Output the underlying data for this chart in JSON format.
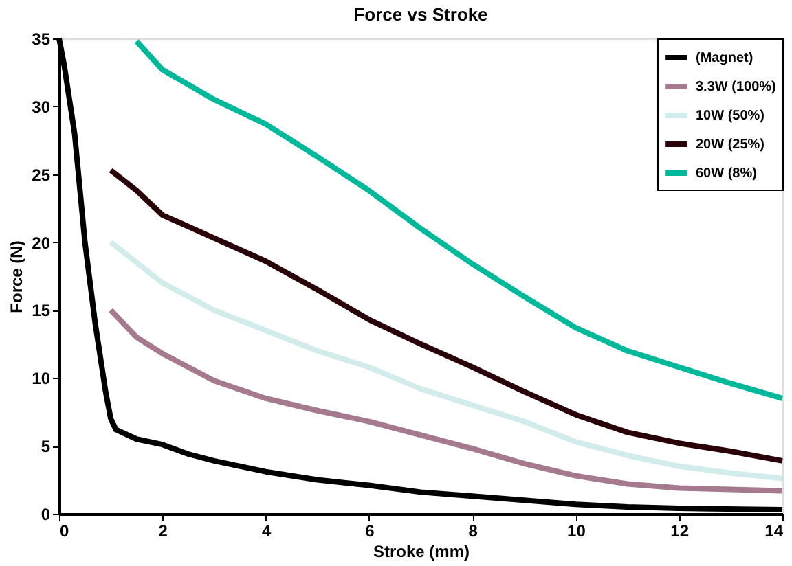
{
  "chart_data": {
    "type": "line",
    "title": "Force vs Stroke",
    "xlabel": "Stroke (mm)",
    "ylabel": "Force (N)",
    "xlim": [
      0,
      14
    ],
    "xticks": [
      0,
      2,
      4,
      6,
      8,
      10,
      12,
      14
    ],
    "ylim": [
      0,
      35
    ],
    "yticks": [
      0,
      5,
      10,
      15,
      20,
      25,
      30,
      35
    ],
    "grid": false,
    "legend": "top right",
    "marker": "none",
    "line_style": "solid",
    "series": [
      {
        "name": "(Magnet)",
        "color": "#000000",
        "x": [
          0,
          0.1,
          0.3,
          0.5,
          0.7,
          0.9,
          1.0,
          1.1,
          1.5,
          2,
          2.5,
          3,
          4,
          5,
          6,
          7,
          8,
          9,
          10,
          11,
          12,
          14
        ],
        "values": [
          35,
          33,
          28,
          20,
          14,
          9,
          7,
          6.2,
          5.5,
          5.1,
          4.4,
          3.9,
          3.1,
          2.5,
          2.1,
          1.6,
          1.3,
          1.0,
          0.7,
          0.5,
          0.4,
          0.3
        ]
      },
      {
        "name": "3.3W (100%)",
        "color": "#a57a8f",
        "x": [
          1,
          1.5,
          2,
          2.5,
          3,
          4,
          5,
          6,
          7,
          8,
          9,
          10,
          11,
          12,
          14
        ],
        "values": [
          15,
          13,
          11.8,
          10.8,
          9.8,
          8.5,
          7.6,
          6.8,
          5.8,
          4.8,
          3.7,
          2.8,
          2.2,
          1.9,
          1.7
        ]
      },
      {
        "name": "10W (50%)",
        "color": "#d2ecec",
        "x": [
          1,
          1.5,
          2,
          3,
          4,
          5,
          6,
          7,
          8,
          9,
          10,
          11,
          12,
          13,
          14
        ],
        "values": [
          20,
          18.5,
          17,
          15,
          13.5,
          12,
          10.8,
          9.2,
          8,
          6.8,
          5.3,
          4.3,
          3.5,
          3.0,
          2.6
        ]
      },
      {
        "name": "20W (25%)",
        "color": "#2a0008",
        "x": [
          1,
          1.5,
          2,
          3,
          4,
          5,
          6,
          7,
          8,
          9,
          10,
          11,
          12,
          13,
          14
        ],
        "values": [
          25.3,
          23.8,
          22,
          20.3,
          18.6,
          16.5,
          14.3,
          12.5,
          10.8,
          9,
          7.3,
          6.0,
          5.2,
          4.6,
          3.9
        ]
      },
      {
        "name": "60W (8%)",
        "color": "#00b89a",
        "x": [
          1.5,
          2,
          3,
          4,
          5,
          6,
          7,
          8,
          9,
          10,
          11,
          12,
          13,
          14
        ],
        "values": [
          34.8,
          32.7,
          30.5,
          28.7,
          26.3,
          23.8,
          21,
          18.4,
          16,
          13.7,
          12,
          10.8,
          9.6,
          8.5
        ]
      }
    ]
  }
}
